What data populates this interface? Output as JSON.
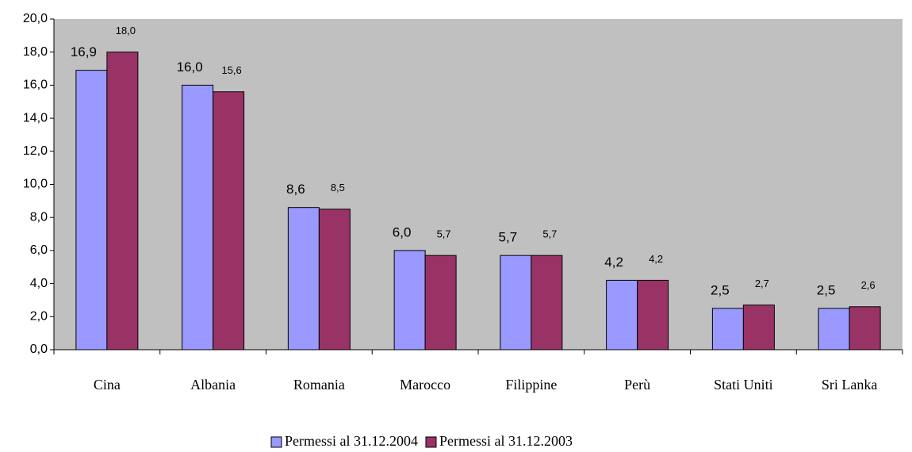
{
  "chart_data": {
    "type": "bar",
    "categories": [
      "Cina",
      "Albania",
      "Romania",
      "Marocco",
      "Filippine",
      "Perù",
      "Stati Uniti",
      "Sri Lanka"
    ],
    "series": [
      {
        "name": "Permessi al 31.12.2004",
        "color": "#9999ff",
        "values": [
          16.9,
          16.0,
          8.6,
          6.0,
          5.7,
          4.2,
          2.5,
          2.5
        ],
        "value_labels": [
          "16,9",
          "16,0",
          "8,6",
          "6,0",
          "5,7",
          "4,2",
          "2,5",
          "2,5"
        ]
      },
      {
        "name": "Permessi al 31.12.2003",
        "color": "#993366",
        "values": [
          18.0,
          15.6,
          8.5,
          5.7,
          5.7,
          4.2,
          2.7,
          2.6
        ],
        "value_labels": [
          "18,0",
          "15,6",
          "8,5",
          "5,7",
          "5,7",
          "4,2",
          "2,7",
          "2,6"
        ]
      }
    ],
    "ylim": [
      0,
      20
    ],
    "yticks": [
      {
        "value": 0,
        "label": "0,0"
      },
      {
        "value": 2,
        "label": "2,0"
      },
      {
        "value": 4,
        "label": "4,0"
      },
      {
        "value": 6,
        "label": "6,0"
      },
      {
        "value": 8,
        "label": "8,0"
      },
      {
        "value": 10,
        "label": "10,0"
      },
      {
        "value": 12,
        "label": "12,0"
      },
      {
        "value": 14,
        "label": "14,0"
      },
      {
        "value": 16,
        "label": "16,0"
      },
      {
        "value": 18,
        "label": "18,0"
      },
      {
        "value": 20,
        "label": "20,0"
      }
    ],
    "plot_background": "#c0c0c0",
    "legend": "bottom"
  }
}
